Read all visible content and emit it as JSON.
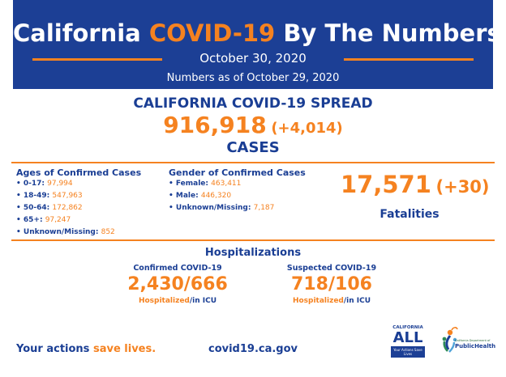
{
  "header": {
    "title_part1": "California ",
    "title_highlight": "COVID-19",
    "title_part2": " By The Numbers",
    "date": "October 30, 2020",
    "as_of": "Numbers as of October 29, 2020"
  },
  "spread": {
    "title": "CALIFORNIA COVID-19 SPREAD",
    "cases_total": "916,918",
    "cases_delta": "(+4,014)",
    "cases_label": "CASES"
  },
  "ages": {
    "title": "Ages of Confirmed Cases",
    "items": [
      {
        "label": "• 0-17: ",
        "value": "97,994"
      },
      {
        "label": "• 18-49: ",
        "value": "547,963"
      },
      {
        "label": "• 50-64: ",
        "value": "172,862"
      },
      {
        "label": "• 65+: ",
        "value": "97,247"
      },
      {
        "label": "• Unknown/Missing: ",
        "value": "852"
      }
    ]
  },
  "gender": {
    "title": "Gender of Confirmed Cases",
    "items": [
      {
        "label": "• Female: ",
        "value": "463,411"
      },
      {
        "label": "• Male: ",
        "value": "446,320"
      },
      {
        "label": "• Unknown/Missing: ",
        "value": "7,187"
      }
    ]
  },
  "fatalities": {
    "total": "17,571",
    "delta": "(+30)",
    "label": "Fatalities"
  },
  "hospitalizations": {
    "title": "Hospitalizations",
    "confirmed": {
      "caption": "Confirmed COVID-19",
      "value": "2,430/666",
      "sub_hospitalized": "Hospitalized",
      "sub_icu": "/in ICU"
    },
    "suspected": {
      "caption": "Suspected COVID-19",
      "value": "718/106",
      "sub_hospitalized": "Hospitalized",
      "sub_icu": "/in ICU"
    }
  },
  "footer": {
    "slogan_part1": "Your actions ",
    "slogan_part2": "save lives.",
    "website": "covid19.ca.gov"
  },
  "logos": {
    "ca_all_top": "CALIFORNIA",
    "ca_all_main": "ALL",
    "ca_all_box": "Your Actions Save Lives",
    "cdph_small": "California Department of",
    "cdph_big": "PublicHealth"
  },
  "colors": {
    "brand_blue": "#1c3f95",
    "accent_orange": "#f58220"
  }
}
